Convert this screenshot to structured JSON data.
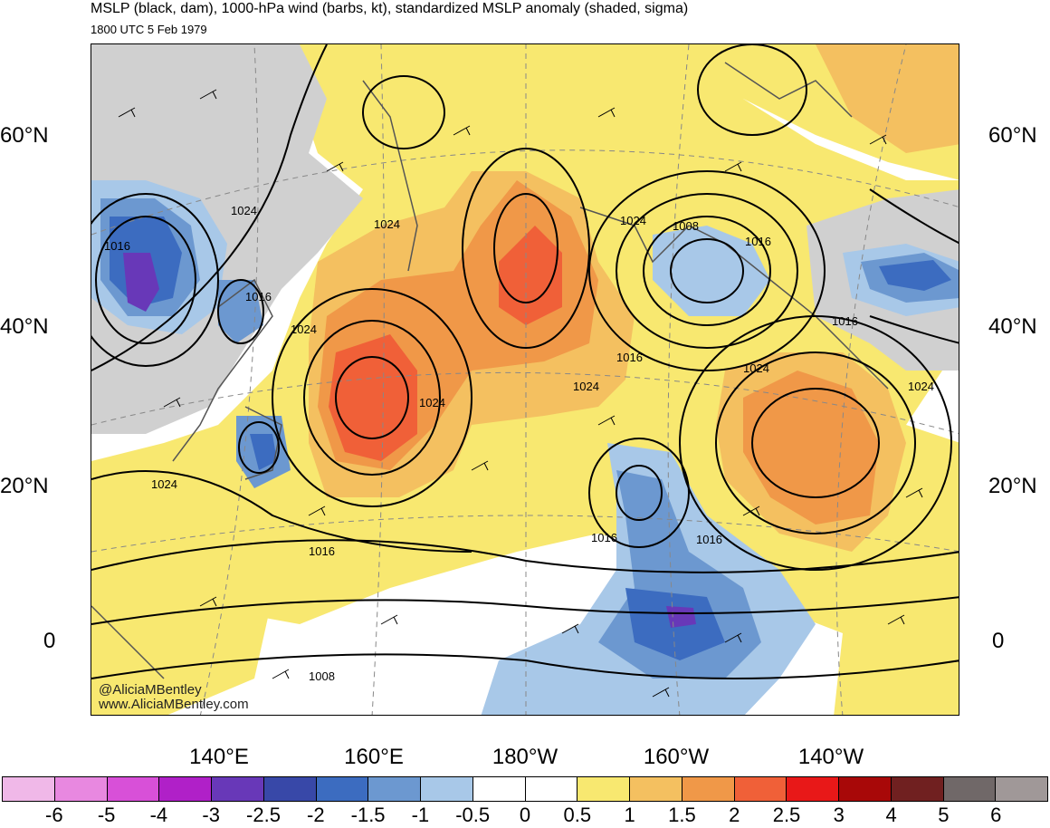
{
  "title": "MSLP (black, dam), 1000-hPa wind (barbs, kt), standardized MSLP anomaly (shaded, sigma)",
  "subtitle": "1800 UTC 5 Feb 1979",
  "lat_labels": [
    "60°N",
    "40°N",
    "20°N",
    "0"
  ],
  "lon_labels": [
    "140°E",
    "160°E",
    "180°W",
    "160°W",
    "140°W"
  ],
  "contour_labels": [
    "1024",
    "1016",
    "1024",
    "1024",
    "1016",
    "1024",
    "1024",
    "1024",
    "1008",
    "1016",
    "1016",
    "1024",
    "1024",
    "1016",
    "1024",
    "1016",
    "1016",
    "1016",
    "1008"
  ],
  "credit_line1": "@AliciaMBentley",
  "credit_line2": "www.AliciaMBentley.com",
  "colorbar": {
    "labels": [
      "-6",
      "-5",
      "-4",
      "-3",
      "-2.5",
      "-2",
      "-1.5",
      "-1",
      "-0.5",
      "0",
      "0.5",
      "1",
      "1.5",
      "2",
      "2.5",
      "3",
      "4",
      "5",
      "6"
    ],
    "colors": [
      "#f0b8e8",
      "#e888e0",
      "#d850d8",
      "#b020c8",
      "#6838b8",
      "#3848a8",
      "#3c6cc0",
      "#6c98d0",
      "#a8c8e8",
      "#ffffff",
      "#ffffff",
      "#f8e870",
      "#f4c060",
      "#f09848",
      "#f06038",
      "#e81818",
      "#a80808",
      "#702020",
      "#706868",
      "#a09898"
    ]
  }
}
